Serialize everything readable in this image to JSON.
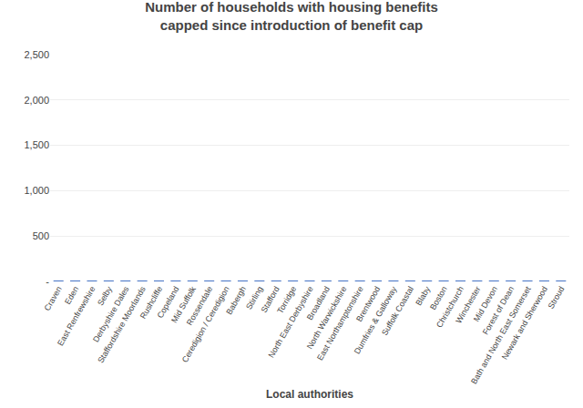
{
  "chart_data": {
    "type": "bar",
    "title": "Number of households with housing benefits\ncapped since introduction of benefit cap",
    "xlabel": "Local authorities",
    "categories": [
      "Craven",
      "Eden",
      "East Renfrewshire",
      "Selby",
      "Derbyshire Dales",
      "Staffordshire Moorlands",
      "Rushcliffe",
      "Copeland",
      "Mid Suffolk",
      "Rossendale",
      "Ceredigion / Ceredigion",
      "Babergh",
      "Stirling",
      "Stafford",
      "Torridge",
      "North East Derbyshire",
      "Broadland",
      "North Warwickshire",
      "East Northamptonshire",
      "Brentwood",
      "Dumfries & Galloway",
      "Suffolk Coastal",
      "Blaby",
      "Boston",
      "Christchurch",
      "Winchester",
      "Mid Devon",
      "Forest of Dean",
      "Bath and North East Somerset",
      "Newark and Sherwood",
      "Stroud"
    ],
    "values": [
      5,
      5,
      5,
      5,
      5,
      5,
      5,
      5,
      5,
      5,
      5,
      5,
      5,
      5,
      5,
      5,
      5,
      5,
      5,
      5,
      5,
      5,
      5,
      5,
      5,
      5,
      5,
      5,
      5,
      5,
      5
    ],
    "color": "#4472c4",
    "ylim": [
      0,
      2500
    ],
    "yticks": [
      {
        "value": 0,
        "label": "-"
      },
      500,
      {
        "value": 1000,
        "label": "1,000"
      },
      {
        "value": 1500,
        "label": "1,500"
      },
      {
        "value": 2000,
        "label": "2,000"
      },
      {
        "value": 2500,
        "label": "2,500"
      }
    ],
    "grid": true
  }
}
